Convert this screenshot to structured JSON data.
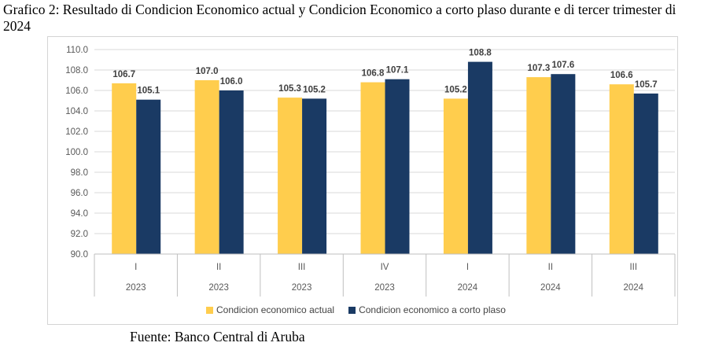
{
  "title": "Grafico 2: Resultado di Condicion Economico actual y Condicion Economico a corto plaso durante e di tercer trimester di 2024",
  "source": "Fuente: Banco Central di Aruba",
  "colors": {
    "actual": "#FFCD4D",
    "corto": "#1A3A64",
    "grid": "#d9d9d9",
    "axis_text": "#595959"
  },
  "chart_data": {
    "type": "bar",
    "categories": [
      {
        "quarter": "I",
        "year": "2023"
      },
      {
        "quarter": "II",
        "year": "2023"
      },
      {
        "quarter": "III",
        "year": "2023"
      },
      {
        "quarter": "IV",
        "year": "2023"
      },
      {
        "quarter": "I",
        "year": "2024"
      },
      {
        "quarter": "II",
        "year": "2024"
      },
      {
        "quarter": "III",
        "year": "2024"
      }
    ],
    "series": [
      {
        "name": "Condicion economico actual",
        "values": [
          106.7,
          107.0,
          105.3,
          106.8,
          105.2,
          107.3,
          106.6
        ]
      },
      {
        "name": "Condicion economico a corto plaso",
        "values": [
          105.1,
          106.0,
          105.2,
          107.1,
          108.8,
          107.6,
          105.7
        ]
      }
    ],
    "value_labels": [
      [
        "106.7",
        "107.0",
        "105.3",
        "106.8",
        "105.2",
        "107.3",
        "106.6"
      ],
      [
        "105.1",
        "106.0",
        "105.2",
        "107.1",
        "108.8",
        "107.6",
        "105.7"
      ]
    ],
    "ylim": [
      90.0,
      110.0
    ],
    "yticks": [
      "90.0",
      "92.0",
      "94.0",
      "96.0",
      "98.0",
      "100.0",
      "102.0",
      "104.0",
      "106.0",
      "108.0",
      "110.0"
    ],
    "grid": true,
    "legend_position": "bottom"
  }
}
